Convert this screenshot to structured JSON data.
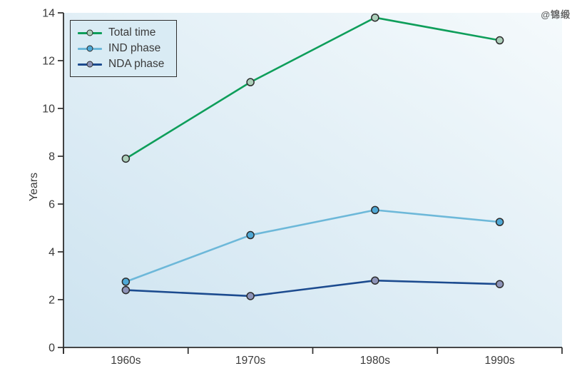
{
  "watermark": {
    "text": "@锦缎"
  },
  "chart_data": {
    "type": "line",
    "title": "",
    "xlabel": "",
    "ylabel": "Years",
    "categories": [
      "1960s",
      "1970s",
      "1980s",
      "1990s"
    ],
    "ylim": [
      0,
      14
    ],
    "yticks": [
      0,
      2,
      4,
      6,
      8,
      10,
      12,
      14
    ],
    "grid": false,
    "legend_position": "top-left",
    "plot_background": {
      "type": "gradient",
      "from": "#cde3f0",
      "to": "#f5fafc"
    },
    "axis_color": "#2e2e2e",
    "text_color": "#3b3b3b",
    "series": [
      {
        "name": "Total time",
        "color": "#0e9e5a",
        "marker_fill": "#accfba",
        "values": [
          7.9,
          11.1,
          13.8,
          12.85
        ]
      },
      {
        "name": "IND phase",
        "color": "#6db8d9",
        "marker_fill": "#4fa8d5",
        "values": [
          2.75,
          4.7,
          5.75,
          5.25
        ]
      },
      {
        "name": "NDA phase",
        "color": "#1c4b8f",
        "marker_fill": "#8d93b8",
        "values": [
          2.4,
          2.15,
          2.8,
          2.65
        ]
      }
    ]
  }
}
